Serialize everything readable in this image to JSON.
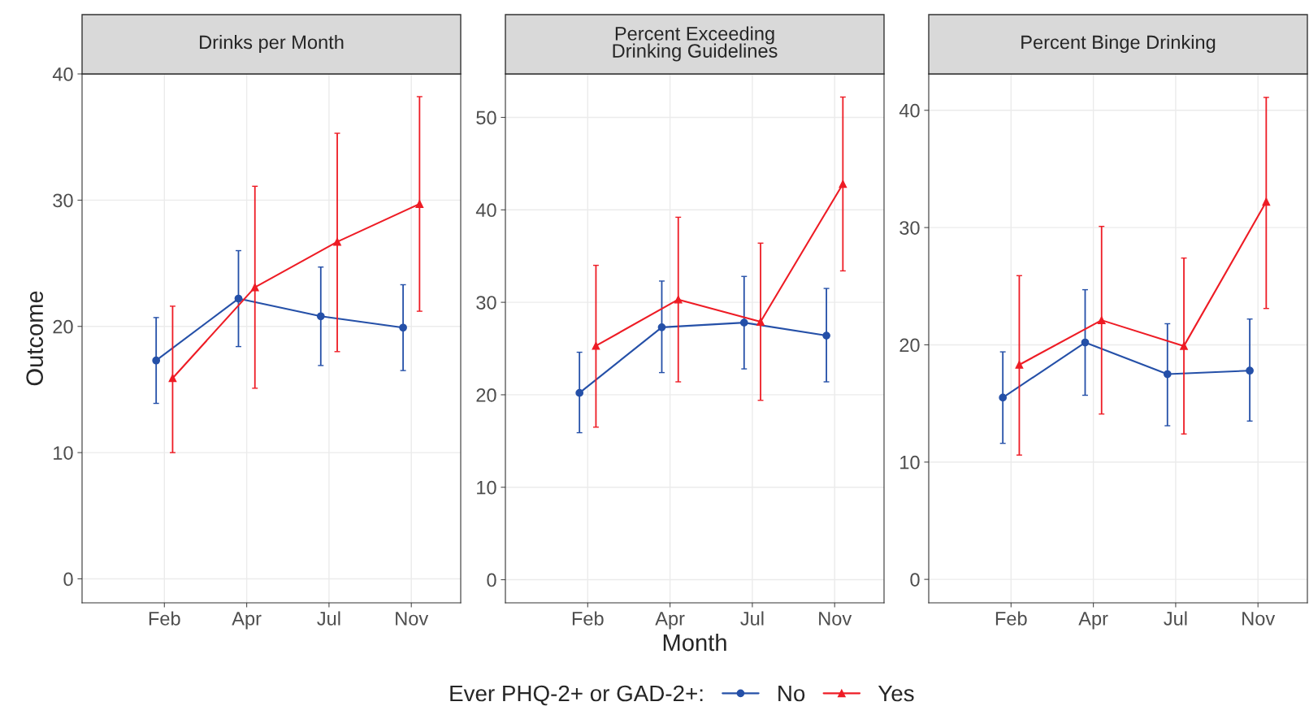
{
  "chart_data": [
    {
      "type": "line",
      "title": "Drinks per Month",
      "ylabel": "Outcome",
      "categories": [
        "Feb",
        "Apr",
        "Jul",
        "Nov"
      ],
      "ylim": [
        -1.9,
        40
      ],
      "yticks": [
        0,
        10,
        20,
        30,
        40
      ],
      "grid": true,
      "legend": "bottom",
      "legend_title": "Ever PHQ-2+ or GAD-2+:",
      "series": [
        {
          "name": "No",
          "color": "#2550a8",
          "marker": "circle",
          "values": [
            17.3,
            22.2,
            20.8,
            19.9
          ],
          "errors": [
            [
              13.9,
              20.7
            ],
            [
              18.4,
              26.0
            ],
            [
              16.9,
              24.7
            ],
            [
              16.5,
              23.3
            ]
          ]
        },
        {
          "name": "Yes",
          "color": "#ee1c25",
          "marker": "triangle",
          "values": [
            15.9,
            23.1,
            26.7,
            29.7
          ],
          "errors": [
            [
              10.0,
              21.6
            ],
            [
              15.1,
              31.1
            ],
            [
              18.0,
              35.3
            ],
            [
              21.2,
              38.2
            ]
          ]
        }
      ]
    },
    {
      "type": "line",
      "title": "Percent Exceeding\nDrinking Guidelines",
      "xlabel": "Month",
      "categories": [
        "Feb",
        "Apr",
        "Jul",
        "Nov"
      ],
      "ylim": [
        -2.5,
        54.7
      ],
      "yticks": [
        0,
        10,
        20,
        30,
        40,
        50
      ],
      "grid": true,
      "series": [
        {
          "color": "#2550a8",
          "marker": "circle",
          "values": [
            20.2,
            27.3,
            27.8,
            26.4
          ],
          "errors": [
            [
              15.9,
              24.6
            ],
            [
              22.4,
              32.3
            ],
            [
              22.8,
              32.8
            ],
            [
              21.4,
              31.5
            ]
          ]
        },
        {
          "color": "#ee1c25",
          "marker": "triangle",
          "values": [
            25.3,
            30.3,
            27.9,
            42.8
          ],
          "errors": [
            [
              16.5,
              34.0
            ],
            [
              21.4,
              39.2
            ],
            [
              19.4,
              36.4
            ],
            [
              33.4,
              52.2
            ]
          ]
        }
      ]
    },
    {
      "type": "line",
      "title": "Percent Binge Drinking",
      "categories": [
        "Feb",
        "Apr",
        "Jul",
        "Nov"
      ],
      "ylim": [
        -2.0,
        43.1
      ],
      "yticks": [
        0,
        10,
        20,
        30,
        40
      ],
      "grid": true,
      "series": [
        {
          "color": "#2550a8",
          "marker": "circle",
          "values": [
            15.5,
            20.2,
            17.5,
            17.8
          ],
          "errors": [
            [
              11.6,
              19.4
            ],
            [
              15.7,
              24.7
            ],
            [
              13.1,
              21.8
            ],
            [
              13.5,
              22.2
            ]
          ]
        },
        {
          "color": "#ee1c25",
          "marker": "triangle",
          "values": [
            18.3,
            22.1,
            19.9,
            32.2
          ],
          "errors": [
            [
              10.6,
              25.9
            ],
            [
              14.1,
              30.1
            ],
            [
              12.4,
              27.4
            ],
            [
              23.1,
              41.1
            ]
          ]
        }
      ]
    }
  ]
}
